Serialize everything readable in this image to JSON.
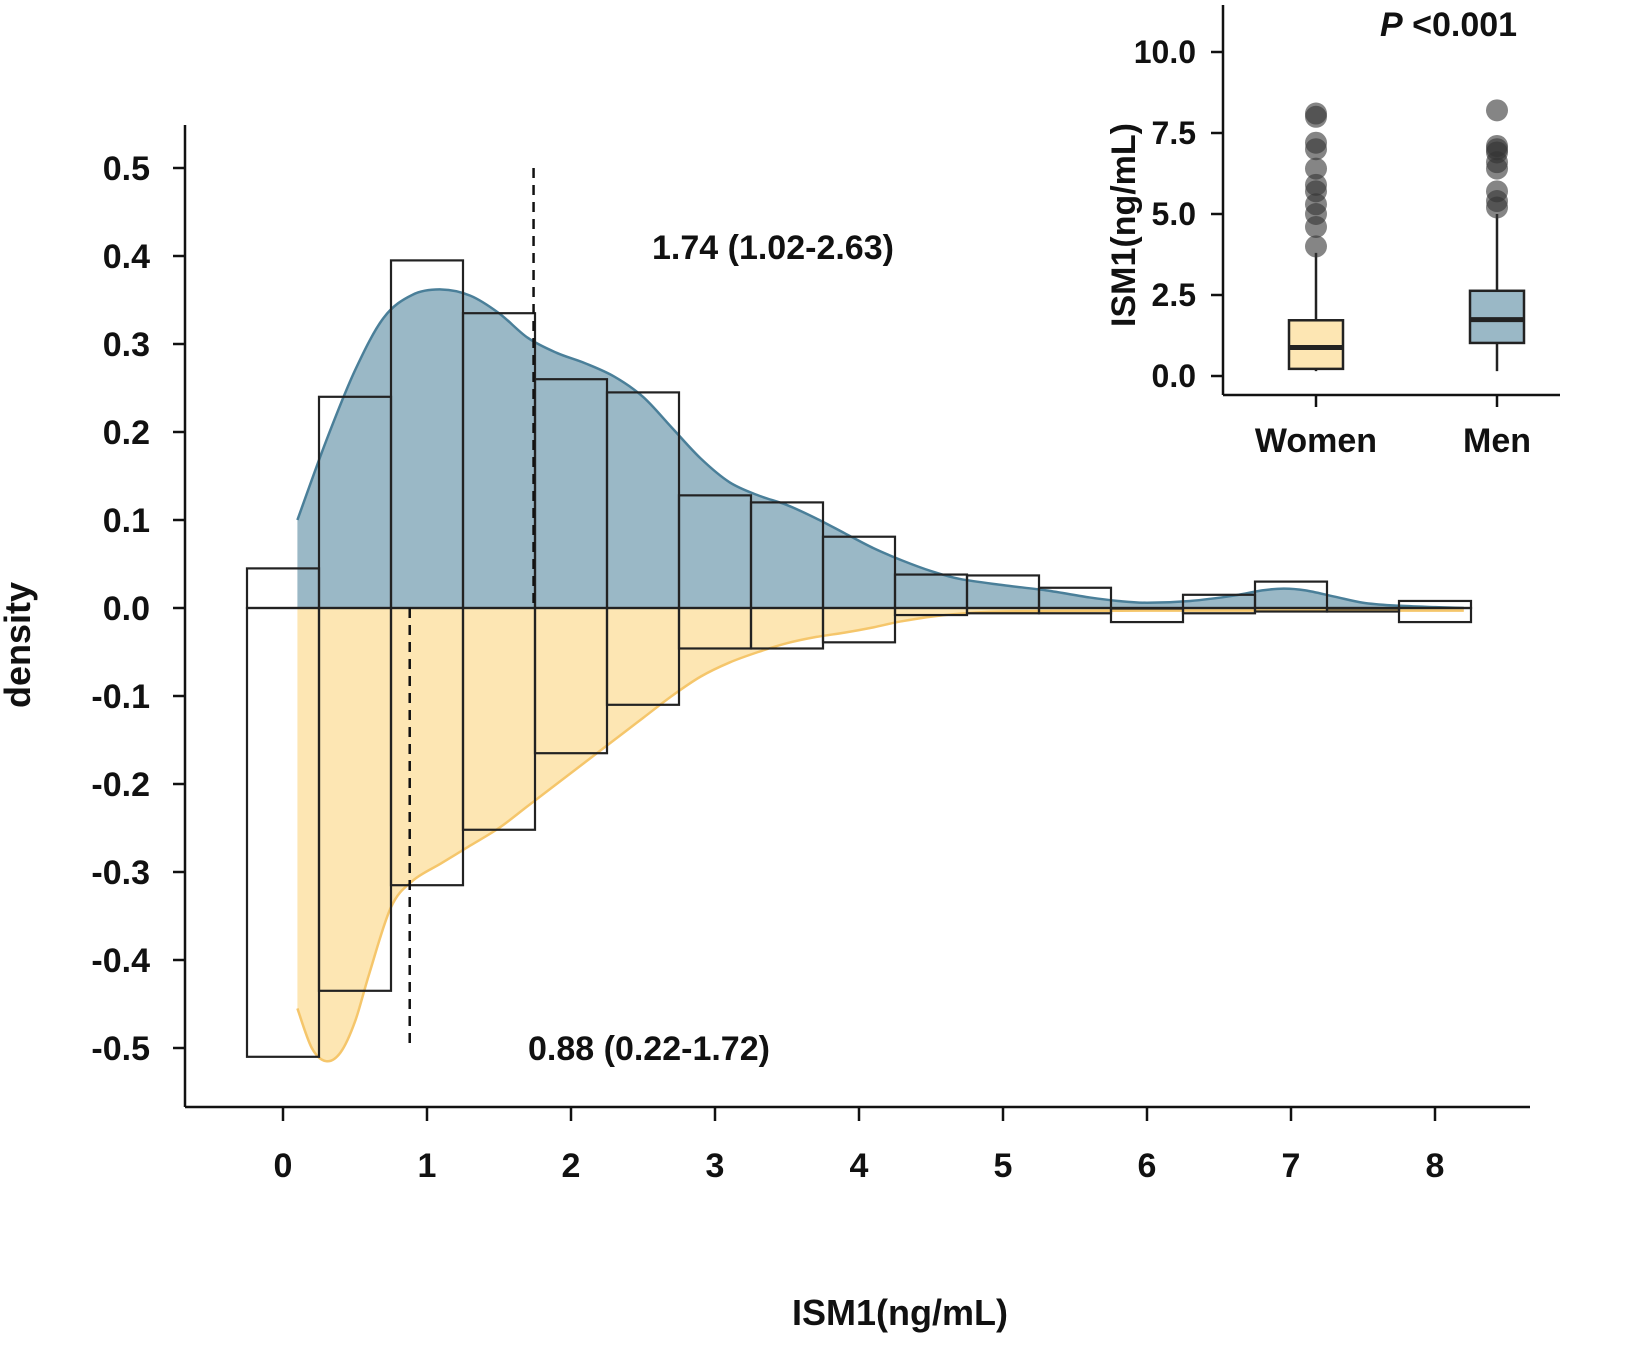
{
  "chart_data": [
    {
      "type": "histogram-density-mirror",
      "xlabel": "ISM1(ng/mL)",
      "ylabel": "density",
      "xlim": [
        -0.95,
        8.4
      ],
      "ylim": [
        -0.565,
        0.55
      ],
      "x_ticks": [
        0,
        1,
        2,
        3,
        4,
        5,
        6,
        7,
        8
      ],
      "y_ticks": [
        {
          "value": 0.5,
          "label": "0.5"
        },
        {
          "value": 0.4,
          "label": "0.4"
        },
        {
          "value": 0.3,
          "label": "0.3"
        },
        {
          "value": 0.2,
          "label": "0.2"
        },
        {
          "value": 0.1,
          "label": "0.1"
        },
        {
          "value": 0.0,
          "label": "0.0"
        },
        {
          "value": -0.1,
          "label": "-0.1"
        },
        {
          "value": -0.2,
          "label": "-0.2"
        },
        {
          "value": -0.3,
          "label": "-0.3"
        },
        {
          "value": -0.4,
          "label": "-0.4"
        },
        {
          "value": -0.5,
          "label": "-0.5"
        }
      ],
      "bin_width": 0.5,
      "bin_centers": [
        0,
        0.5,
        1,
        1.5,
        2,
        2.5,
        3,
        3.5,
        4,
        4.5,
        5,
        5.5,
        6,
        6.5,
        7,
        7.5,
        8
      ],
      "series": [
        {
          "name": "Men",
          "side": "upper",
          "color": "#9ab8c6",
          "line_color": "#4a7f99",
          "histogram": [
            0.045,
            0.24,
            0.395,
            0.335,
            0.26,
            0.245,
            0.128,
            0.12,
            0.081,
            0.038,
            0.037,
            0.023,
            0.0,
            0.015,
            0.03,
            0.0,
            0.008
          ],
          "density_x": [
            0.1,
            0.3,
            0.5,
            0.7,
            0.9,
            1.1,
            1.3,
            1.5,
            1.7,
            1.9,
            2.1,
            2.3,
            2.5,
            2.7,
            2.9,
            3.1,
            3.3,
            3.5,
            3.7,
            3.9,
            4.1,
            4.3,
            4.5,
            4.7,
            5.0,
            5.3,
            5.6,
            5.8,
            6.0,
            6.3,
            6.6,
            6.8,
            6.95,
            7.1,
            7.3,
            7.5,
            7.7,
            8.0,
            8.2
          ],
          "density_y": [
            0.1,
            0.19,
            0.27,
            0.33,
            0.356,
            0.362,
            0.355,
            0.335,
            0.307,
            0.29,
            0.278,
            0.263,
            0.24,
            0.205,
            0.17,
            0.143,
            0.128,
            0.117,
            0.102,
            0.085,
            0.068,
            0.054,
            0.042,
            0.033,
            0.026,
            0.02,
            0.012,
            0.008,
            0.006,
            0.008,
            0.014,
            0.02,
            0.022,
            0.02,
            0.013,
            0.006,
            0.003,
            0.001,
            0.0
          ],
          "median_line": 1.74,
          "annotation": "1.74 (1.02-2.63)"
        },
        {
          "name": "Women",
          "side": "lower",
          "color": "#fde6b3",
          "line_color": "#f5c66b",
          "histogram": [
            0.51,
            0.435,
            0.315,
            0.252,
            0.165,
            0.11,
            0.046,
            0.046,
            0.039,
            0.008,
            0.006,
            0.006,
            0.016,
            0.006,
            0.004,
            0.004,
            0.016
          ],
          "density_x": [
            0.1,
            0.2,
            0.3,
            0.4,
            0.5,
            0.6,
            0.75,
            0.9,
            1.1,
            1.3,
            1.5,
            1.7,
            1.9,
            2.1,
            2.3,
            2.5,
            2.7,
            2.9,
            3.1,
            3.3,
            3.5,
            3.7,
            3.9,
            4.1,
            4.3,
            4.6,
            5.0,
            6.0,
            7.0,
            8.2
          ],
          "density_y": [
            -0.455,
            -0.5,
            -0.515,
            -0.505,
            -0.47,
            -0.415,
            -0.34,
            -0.31,
            -0.29,
            -0.27,
            -0.25,
            -0.225,
            -0.2,
            -0.175,
            -0.15,
            -0.125,
            -0.1,
            -0.078,
            -0.062,
            -0.05,
            -0.04,
            -0.033,
            -0.028,
            -0.022,
            -0.015,
            -0.008,
            -0.004,
            -0.003,
            -0.003,
            -0.003
          ],
          "median_line": 0.88,
          "annotation": "0.88 (0.22-1.72)"
        }
      ]
    },
    {
      "type": "boxplot",
      "ylabel": "ISM1(ng/mL)",
      "title_prefix": "P",
      "title_rest": " <0.001",
      "ylim": [
        -0.5,
        11.5
      ],
      "y_ticks": [
        "0.0",
        "2.5",
        "5.0",
        "7.5",
        "10.0"
      ],
      "categories": [
        "Women",
        "Men"
      ],
      "boxes": [
        {
          "name": "Women",
          "color": "#fde6b3",
          "whisker_low": 0.15,
          "q1": 0.22,
          "median": 0.88,
          "q3": 1.72,
          "whisker_high": 3.8,
          "outliers": [
            4.0,
            4.6,
            5.0,
            5.3,
            5.7,
            5.9,
            6.4,
            7.0,
            7.2,
            8.0,
            8.1
          ]
        },
        {
          "name": "Men",
          "color": "#9ab8c6",
          "whisker_low": 0.15,
          "q1": 1.02,
          "median": 1.74,
          "q3": 2.63,
          "whisker_high": 5.0,
          "outliers": [
            5.2,
            5.4,
            5.7,
            6.4,
            6.6,
            6.9,
            7.0,
            7.1,
            8.2
          ]
        }
      ]
    }
  ]
}
